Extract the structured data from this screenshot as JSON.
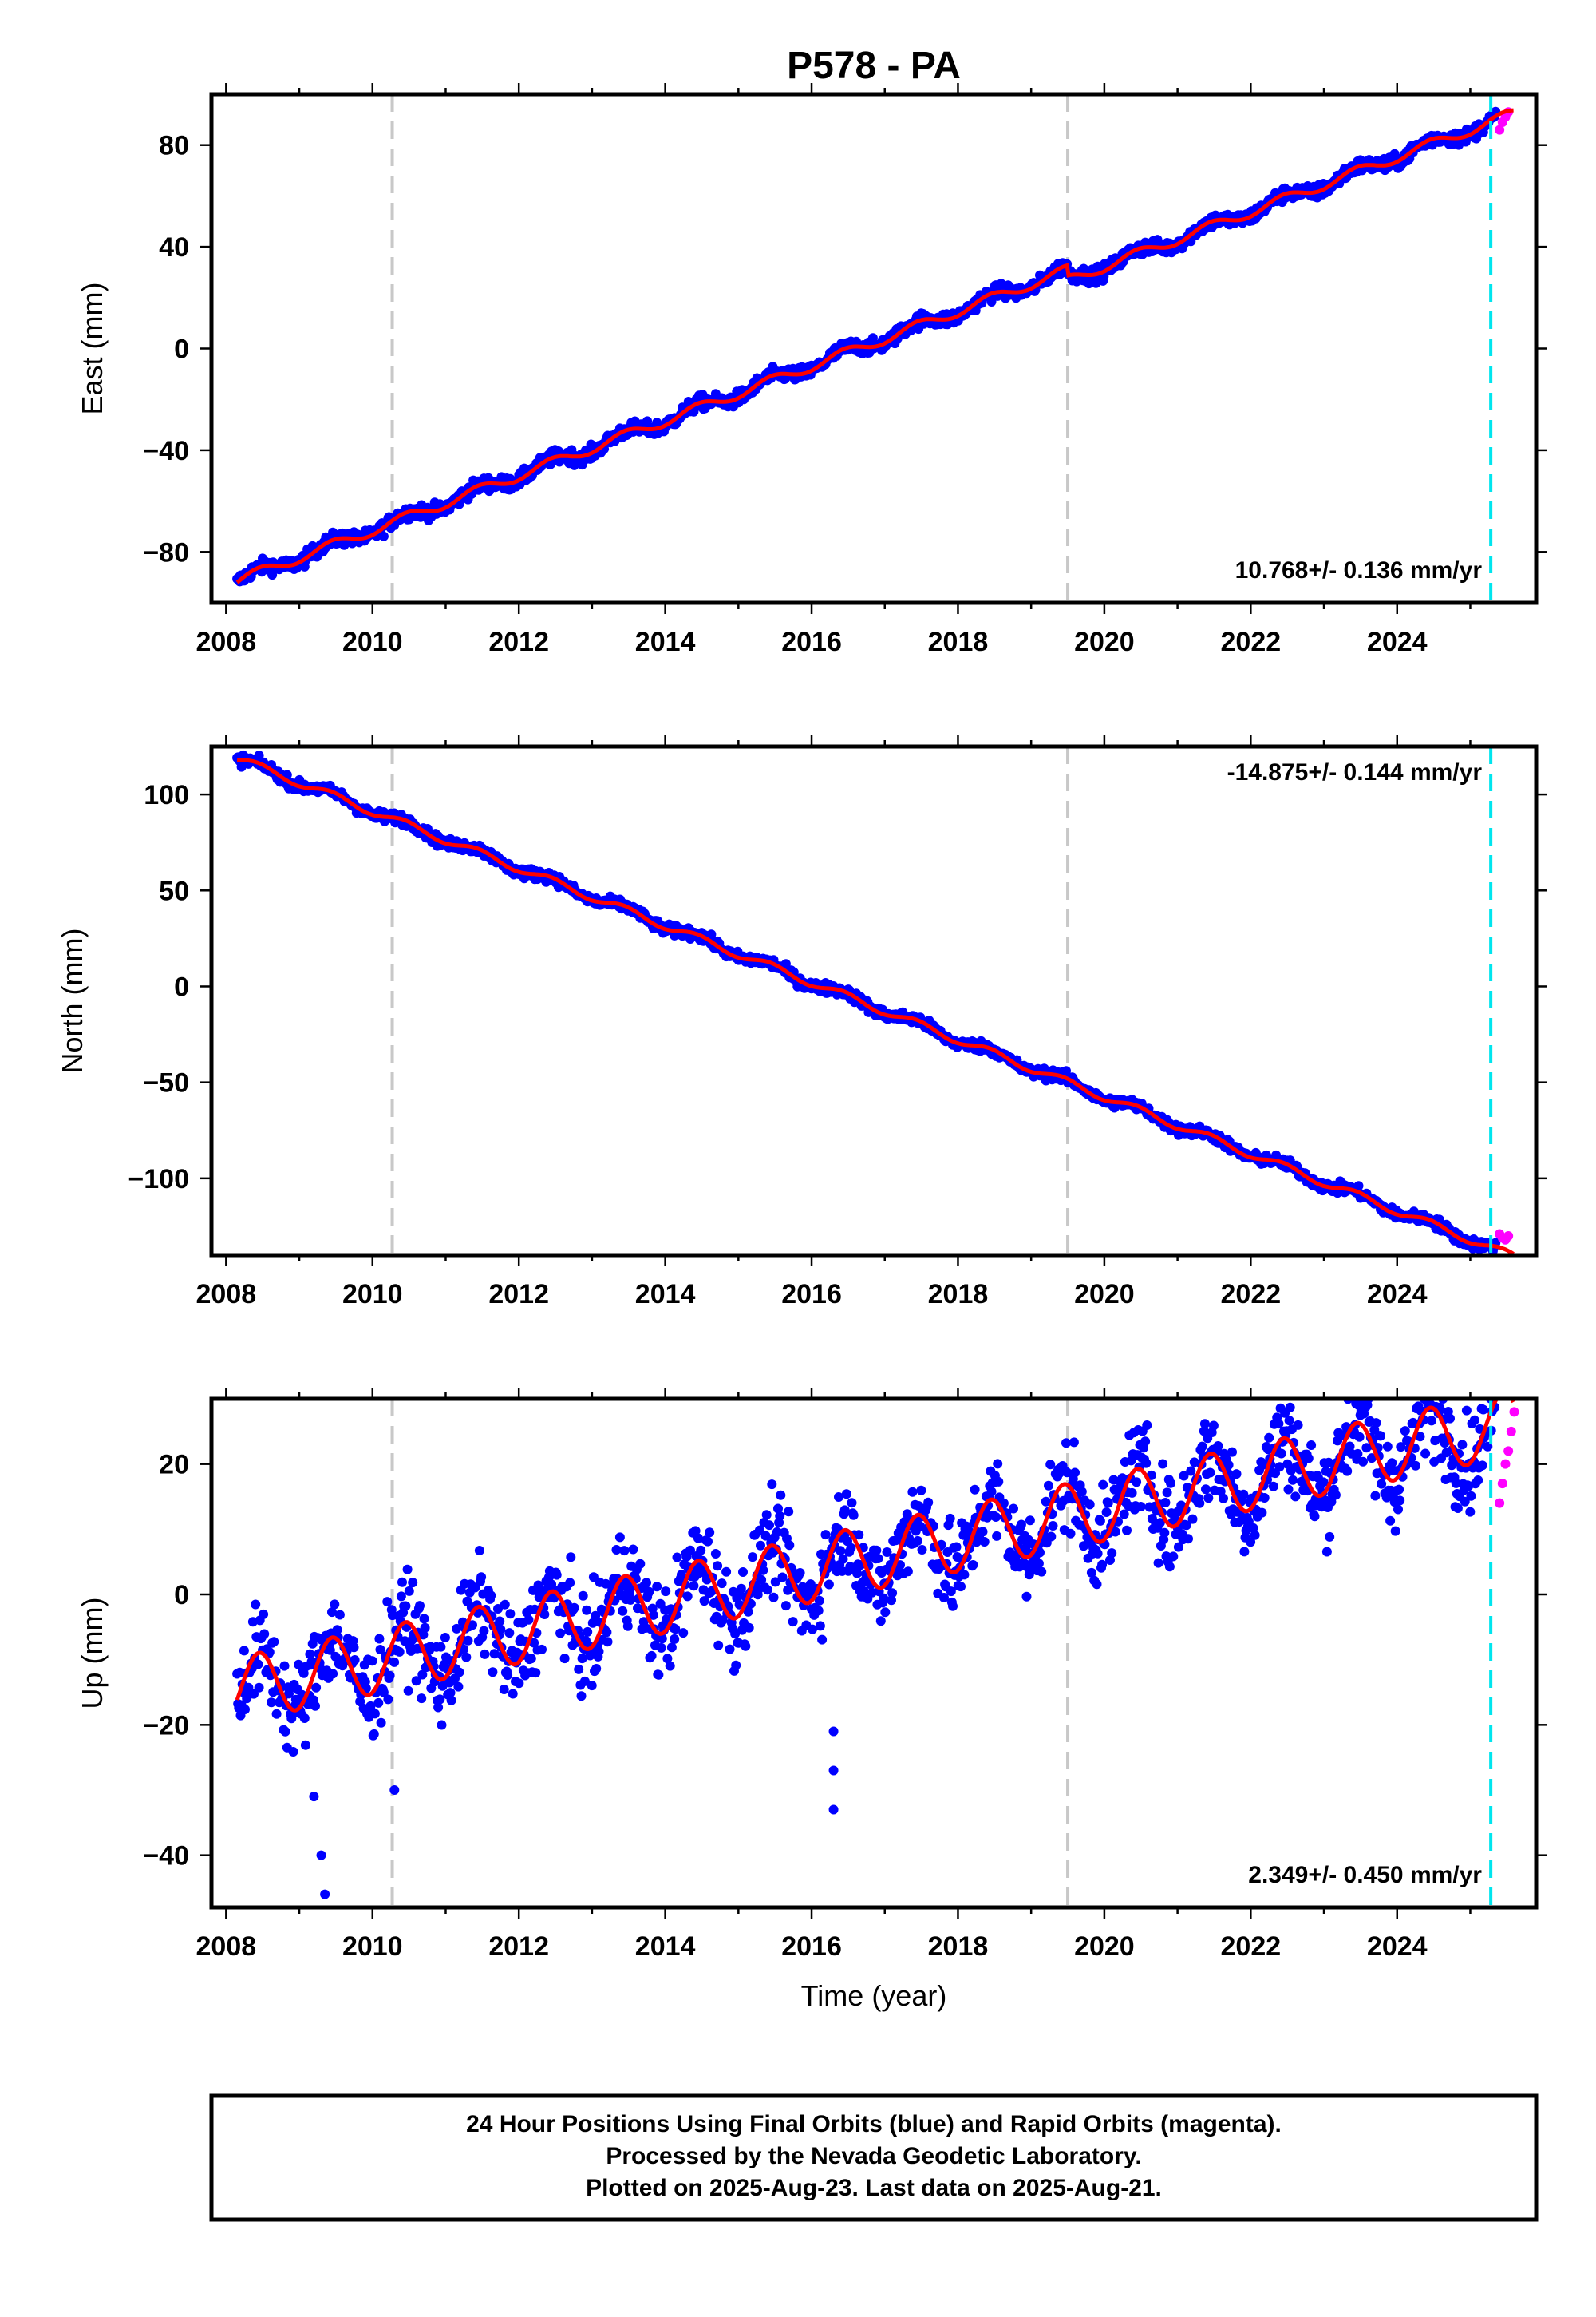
{
  "title": "P578 - PA",
  "xlabel": "Time (year)",
  "colors": {
    "final_orbits": "#0000ff",
    "rapid_orbits": "#ff00ff",
    "model": "#ff0000",
    "equipment_change": "#c8c8c8",
    "latest_marker": "#00e5ee"
  },
  "footer": {
    "line1": "24 Hour Positions Using Final Orbits (blue) and Rapid Orbits (magenta).",
    "line2": "Processed by the Nevada Geodetic Laboratory.",
    "line3": "Plotted on 2025-Aug-23. Last data on 2025-Aug-21."
  },
  "chart_data": [
    {
      "type": "scatter",
      "panel": "east",
      "ylabel": "East (mm)",
      "rate_text": "10.768+/- 0.136 mm/yr",
      "xlim": [
        2007.8,
        2025.9
      ],
      "ylim": [
        -100,
        100
      ],
      "xticks": [
        2008,
        2010,
        2012,
        2014,
        2016,
        2018,
        2020,
        2022,
        2024
      ],
      "yticks": [
        -80,
        -40,
        0,
        40,
        80
      ],
      "rate_mm_per_yr": 10.768,
      "y_at_2008": -93,
      "seasonal_amplitude": 2,
      "scatter_spread": 2,
      "offset_2019_5": -4,
      "final_end": 2025.35,
      "rapid_last_values": [
        86,
        89,
        91,
        93
      ],
      "vlines_equipment": [
        2010.27,
        2019.5
      ],
      "vline_latest": 2025.28
    },
    {
      "type": "scatter",
      "panel": "north",
      "ylabel": "North (mm)",
      "rate_text": "-14.875+/- 0.144 mm/yr",
      "xlim": [
        2007.8,
        2025.9
      ],
      "ylim": [
        -140,
        125
      ],
      "xticks": [
        2008,
        2010,
        2012,
        2014,
        2016,
        2018,
        2020,
        2022,
        2024
      ],
      "yticks": [
        -100,
        -50,
        0,
        50,
        100
      ],
      "rate_mm_per_yr": -14.875,
      "y_at_2008": 121,
      "seasonal_amplitude": 2,
      "scatter_spread": 2,
      "final_end": 2025.35,
      "rapid_last_values": [
        -129,
        -131,
        -132,
        -130
      ],
      "vlines_equipment": [
        2010.27,
        2019.5
      ],
      "vline_latest": 2025.28
    },
    {
      "type": "scatter",
      "panel": "up",
      "ylabel": "Up (mm)",
      "rate_text": "2.349+/- 0.450 mm/yr",
      "xlim": [
        2007.8,
        2025.9
      ],
      "ylim": [
        -48,
        30
      ],
      "xticks": [
        2008,
        2010,
        2012,
        2014,
        2016,
        2018,
        2020,
        2022,
        2024
      ],
      "yticks": [
        -40,
        -20,
        0,
        20
      ],
      "rate_mm_per_yr": 2.349,
      "y_at_2008": -15,
      "seasonal_amplitude": 5,
      "scatter_spread": 5,
      "final_end": 2025.35,
      "rapid_last_values": [
        14,
        17,
        20,
        22,
        25,
        28
      ],
      "outliers": [
        [
          2009.2,
          -31
        ],
        [
          2009.3,
          -40
        ],
        [
          2009.35,
          -46
        ],
        [
          2016.3,
          -21
        ],
        [
          2016.3,
          -27
        ],
        [
          2016.3,
          -33
        ],
        [
          2010.3,
          -30
        ]
      ],
      "vlines_equipment": [
        2010.27,
        2019.5
      ],
      "vline_latest": 2025.28
    }
  ]
}
